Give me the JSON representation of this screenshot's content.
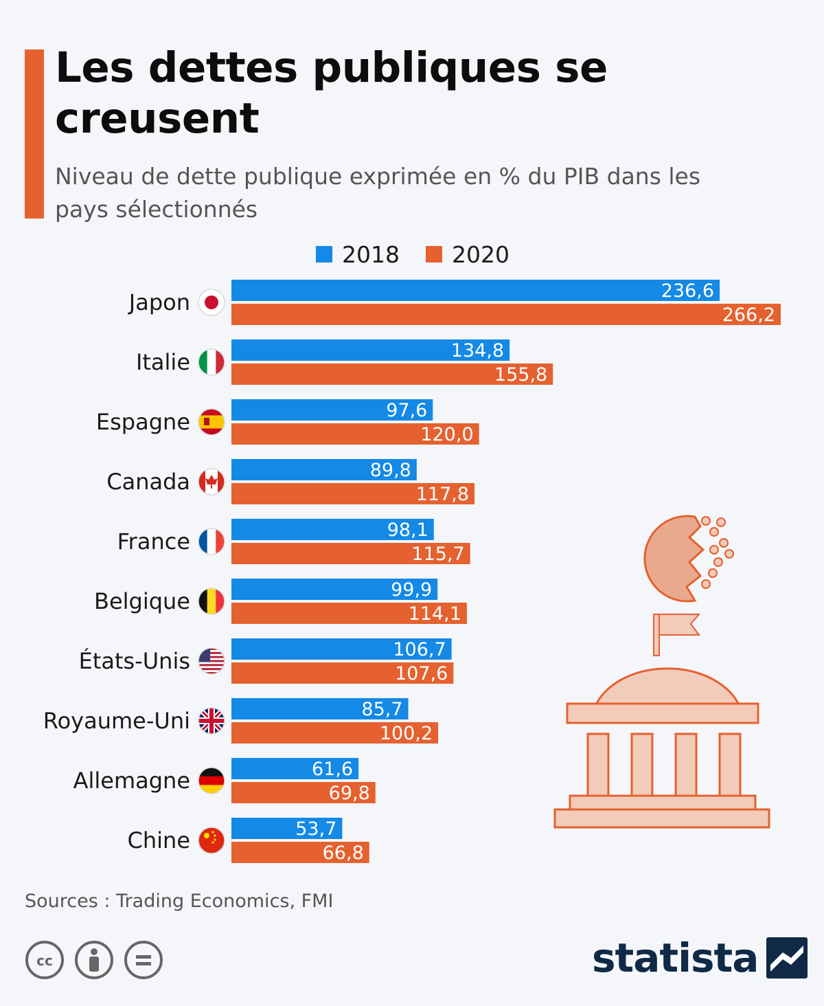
{
  "title": "Les dettes publiques se creusent",
  "subtitle": "Niveau de dette publique exprimée en % du PIB dans les pays sélectionnés",
  "colors": {
    "accent": "#e5612f",
    "series_2018": "#1489e6",
    "series_2020": "#e5612f",
    "brand": "#0f2946"
  },
  "legend": [
    {
      "label": "2018",
      "color": "#1489e6"
    },
    {
      "label": "2020",
      "color": "#e5612f"
    }
  ],
  "chart_data": {
    "type": "bar",
    "orientation": "horizontal",
    "title": "Les dettes publiques se creusent",
    "subtitle": "Niveau de dette publique exprimée en % du PIB dans les pays sélectionnés",
    "categories": [
      "Japon",
      "Italie",
      "Espagne",
      "Canada",
      "France",
      "Belgique",
      "États-Unis",
      "Royaume-Uni",
      "Allemagne",
      "Chine"
    ],
    "flag_icons": [
      "japan-flag-icon",
      "italy-flag-icon",
      "spain-flag-icon",
      "canada-flag-icon",
      "france-flag-icon",
      "belgium-flag-icon",
      "usa-flag-icon",
      "uk-flag-icon",
      "germany-flag-icon",
      "china-flag-icon"
    ],
    "series": [
      {
        "name": "2018",
        "values": [
          236.6,
          134.8,
          97.6,
          89.8,
          98.1,
          99.9,
          106.7,
          85.7,
          61.6,
          53.7
        ],
        "labels": [
          "236,6",
          "134,8",
          "97,6",
          "89,8",
          "98,1",
          "99,9",
          "106,7",
          "85,7",
          "61,6",
          "53,7"
        ]
      },
      {
        "name": "2020",
        "values": [
          266.2,
          155.8,
          120.0,
          117.8,
          115.7,
          114.1,
          107.6,
          100.2,
          69.8,
          66.8
        ],
        "labels": [
          "266,2",
          "155,8",
          "120,0",
          "117,8",
          "115,7",
          "114,1",
          "107,6",
          "100,2",
          "69,8",
          "66,8"
        ]
      }
    ],
    "xlim": [
      0,
      266.2
    ],
    "grid": false,
    "axes_visible": false,
    "legend_position": "top"
  },
  "footer": {
    "sources": "Sources : Trading Economics, FMI",
    "license_icons": [
      "cc-icon",
      "attribution-icon",
      "no-derivatives-icon"
    ],
    "brand": "statista"
  }
}
